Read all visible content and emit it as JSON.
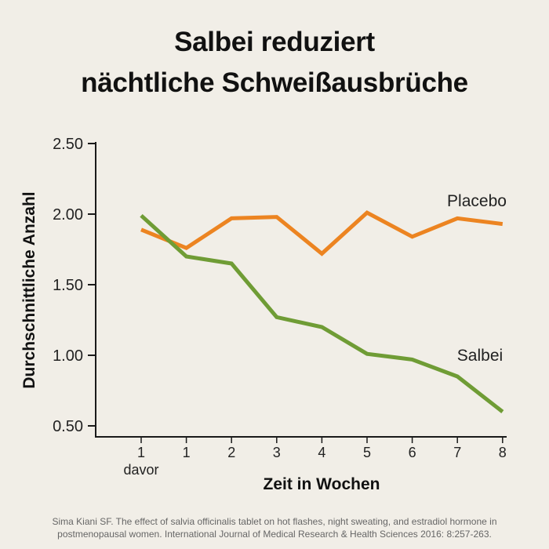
{
  "title_line1": "Salbei reduziert",
  "title_line2": "nächtliche Schweißausbrüche",
  "source_line1": "Sima Kiani SF. The effect of salvia officinalis tablet on hot flashes, night sweating, and estradiol hormone in",
  "source_line2": "postmenopausal women. International Journal of Medical Research & Health Sciences 2016: 8:257-263.",
  "chart_data": {
    "type": "line",
    "title": "Salbei reduziert nächtliche Schweißausbrüche",
    "xlabel": "Zeit in Wochen",
    "ylabel": "Durchschnittliche Anzahl",
    "ylim": [
      0.5,
      2.5
    ],
    "yticks": [
      "0.50",
      "1.00",
      "1.50",
      "2.00",
      "2.50"
    ],
    "categories": [
      "1",
      "1",
      "2",
      "3",
      "4",
      "5",
      "6",
      "7",
      "8"
    ],
    "category_sublabels": [
      "davor",
      "",
      "",
      "",
      "",
      "",
      "",
      "",
      ""
    ],
    "grid": false,
    "series": [
      {
        "name": "Placebo",
        "color": "#ec8421",
        "values": [
          1.89,
          1.76,
          1.97,
          1.98,
          1.72,
          2.01,
          1.84,
          1.97,
          1.93
        ]
      },
      {
        "name": "Salbei",
        "color": "#6f9c35",
        "values": [
          1.99,
          1.7,
          1.65,
          1.27,
          1.2,
          1.01,
          0.97,
          0.85,
          0.6
        ]
      }
    ]
  }
}
